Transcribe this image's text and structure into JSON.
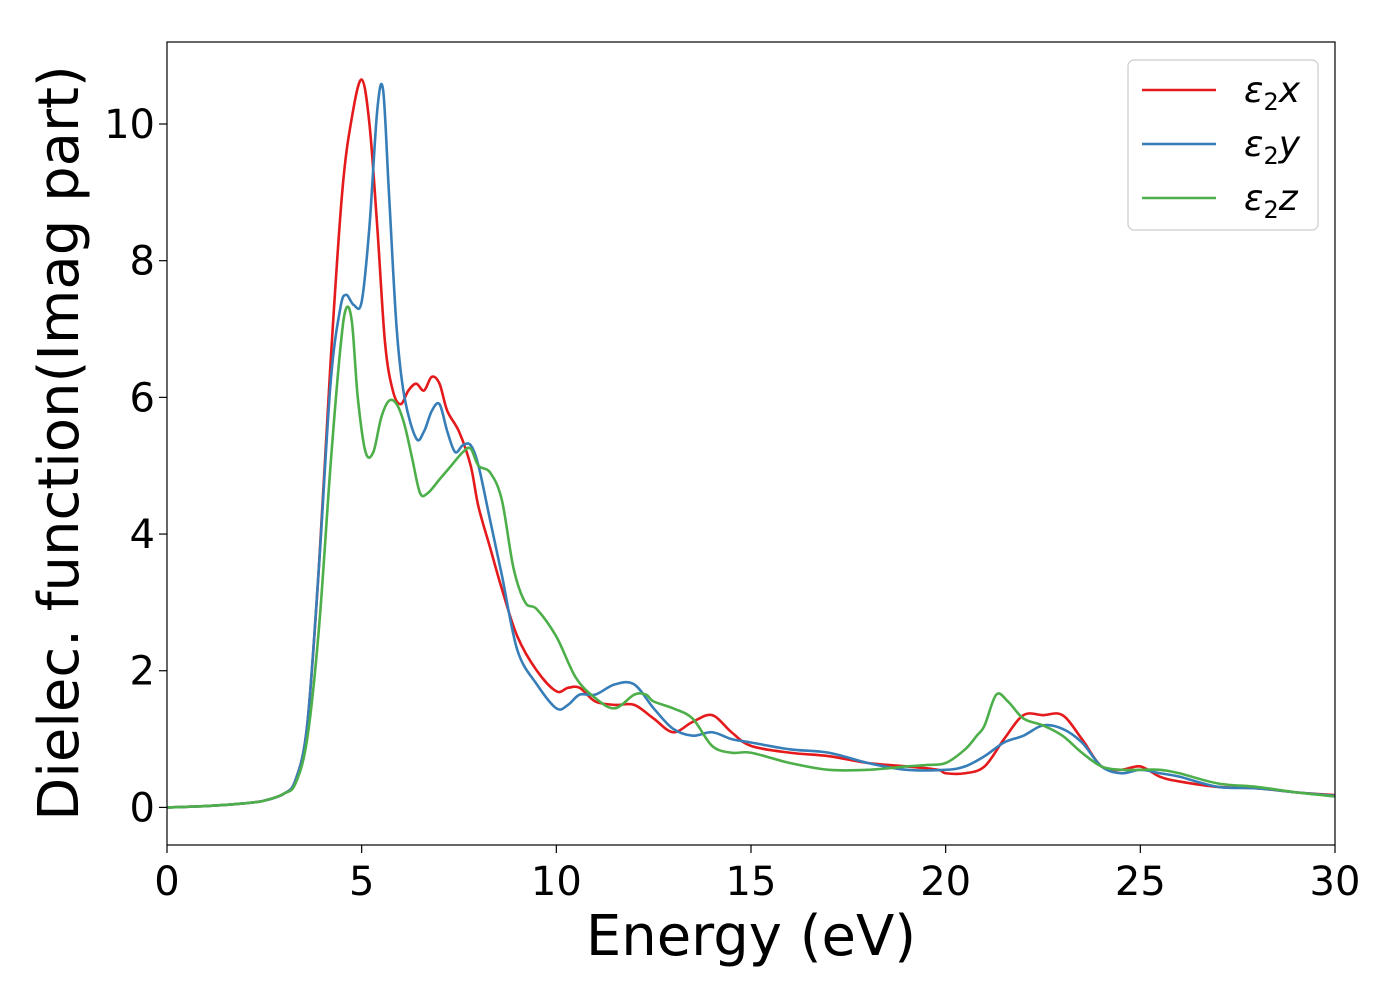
{
  "chart_data": {
    "type": "line",
    "xlabel": "Energy (eV)",
    "ylabel": "Dielec. function(Imag part)",
    "xlim": [
      0,
      30
    ],
    "ylim": [
      -0.55,
      11.2
    ],
    "xticks": [
      0,
      5,
      10,
      15,
      20,
      25,
      30
    ],
    "yticks": [
      0,
      2,
      4,
      6,
      8,
      10
    ],
    "grid": false,
    "legend_position": "top-right",
    "series": [
      {
        "name": "ε2x",
        "legend_base": "ε",
        "legend_sub": "2",
        "legend_suffix": "x",
        "color": "#e41a1c",
        "x": [
          0,
          1,
          2,
          2.5,
          3,
          3.3,
          3.6,
          3.9,
          4.2,
          4.5,
          4.75,
          5.0,
          5.2,
          5.4,
          5.6,
          5.8,
          6.0,
          6.2,
          6.4,
          6.6,
          6.8,
          7.0,
          7.2,
          7.5,
          7.8,
          8.0,
          8.3,
          8.6,
          9.0,
          9.5,
          10.0,
          10.3,
          10.6,
          11.0,
          11.5,
          12.0,
          12.5,
          13.0,
          13.5,
          14.0,
          14.5,
          15.0,
          16.0,
          17.0,
          18.0,
          19.0,
          19.8,
          20.0,
          20.5,
          21.0,
          21.5,
          22.0,
          22.5,
          23.0,
          23.5,
          24.0,
          24.5,
          25.0,
          25.5,
          26.0,
          27.0,
          28.0,
          29.0,
          30.0
        ],
        "values": [
          0,
          0.02,
          0.06,
          0.1,
          0.2,
          0.4,
          1.2,
          3.5,
          6.5,
          9.0,
          10.1,
          10.65,
          10.0,
          8.5,
          6.8,
          6.1,
          5.9,
          6.1,
          6.2,
          6.1,
          6.3,
          6.2,
          5.8,
          5.5,
          5.0,
          4.4,
          3.8,
          3.2,
          2.5,
          2.0,
          1.7,
          1.75,
          1.75,
          1.55,
          1.5,
          1.5,
          1.3,
          1.1,
          1.25,
          1.35,
          1.1,
          0.9,
          0.8,
          0.75,
          0.65,
          0.6,
          0.55,
          0.5,
          0.5,
          0.6,
          1.0,
          1.35,
          1.35,
          1.35,
          1.0,
          0.6,
          0.55,
          0.6,
          0.45,
          0.38,
          0.3,
          0.28,
          0.22,
          0.18
        ]
      },
      {
        "name": "ε2y",
        "legend_base": "ε",
        "legend_sub": "2",
        "legend_suffix": "y",
        "color": "#377eb8",
        "x": [
          0,
          1,
          2,
          2.5,
          3,
          3.3,
          3.6,
          3.9,
          4.2,
          4.45,
          4.6,
          4.8,
          5.0,
          5.2,
          5.4,
          5.55,
          5.7,
          5.9,
          6.1,
          6.4,
          6.6,
          6.8,
          7.0,
          7.2,
          7.4,
          7.6,
          7.8,
          8.0,
          8.3,
          8.6,
          9.0,
          9.5,
          10.0,
          10.3,
          10.6,
          11.0,
          11.5,
          12.0,
          12.5,
          13.0,
          13.5,
          14.0,
          14.5,
          15.0,
          16.0,
          17.0,
          18.0,
          19.0,
          20.0,
          20.5,
          21.0,
          21.5,
          22.0,
          22.5,
          23.0,
          23.5,
          24.0,
          24.5,
          25.0,
          25.5,
          26.0,
          27.0,
          28.0,
          29.0,
          30.0
        ],
        "values": [
          0,
          0.02,
          0.06,
          0.1,
          0.2,
          0.4,
          1.2,
          3.5,
          6.2,
          7.3,
          7.5,
          7.35,
          7.4,
          8.5,
          10.2,
          10.5,
          9.0,
          7.0,
          6.0,
          5.4,
          5.5,
          5.8,
          5.9,
          5.5,
          5.2,
          5.3,
          5.3,
          5.0,
          4.2,
          3.4,
          2.3,
          1.8,
          1.45,
          1.5,
          1.65,
          1.65,
          1.8,
          1.8,
          1.45,
          1.15,
          1.05,
          1.1,
          1.0,
          0.95,
          0.85,
          0.8,
          0.65,
          0.55,
          0.55,
          0.6,
          0.75,
          0.95,
          1.05,
          1.2,
          1.15,
          0.95,
          0.6,
          0.5,
          0.55,
          0.5,
          0.45,
          0.3,
          0.28,
          0.22,
          0.17
        ]
      },
      {
        "name": "ε2z",
        "legend_base": "ε",
        "legend_sub": "2",
        "legend_suffix": "z",
        "color": "#4daf4a",
        "x": [
          0,
          1,
          2,
          2.5,
          3,
          3.3,
          3.6,
          3.9,
          4.2,
          4.45,
          4.6,
          4.75,
          4.9,
          5.1,
          5.3,
          5.5,
          5.7,
          5.9,
          6.1,
          6.3,
          6.5,
          6.7,
          7.0,
          7.3,
          7.6,
          7.8,
          8.0,
          8.3,
          8.6,
          8.9,
          9.2,
          9.5,
          10.0,
          10.5,
          11.0,
          11.5,
          12.0,
          12.3,
          12.5,
          13.0,
          13.5,
          14.0,
          14.5,
          15.0,
          16.0,
          17.0,
          18.0,
          19.0,
          19.5,
          20.0,
          20.5,
          20.8,
          21.0,
          21.3,
          21.6,
          22.0,
          22.5,
          23.0,
          23.5,
          24.0,
          24.5,
          25.0,
          25.5,
          26.0,
          27.0,
          28.0,
          29.0,
          30.0
        ],
        "values": [
          0,
          0.02,
          0.06,
          0.1,
          0.2,
          0.35,
          1.0,
          2.6,
          5.0,
          6.7,
          7.3,
          7.1,
          6.0,
          5.2,
          5.2,
          5.7,
          5.95,
          5.9,
          5.6,
          5.1,
          4.6,
          4.6,
          4.8,
          5.0,
          5.2,
          5.25,
          5.0,
          4.9,
          4.5,
          3.5,
          3.0,
          2.9,
          2.5,
          1.9,
          1.6,
          1.45,
          1.65,
          1.65,
          1.55,
          1.45,
          1.3,
          0.9,
          0.8,
          0.8,
          0.65,
          0.55,
          0.55,
          0.6,
          0.62,
          0.65,
          0.85,
          1.05,
          1.2,
          1.65,
          1.55,
          1.3,
          1.2,
          1.05,
          0.8,
          0.6,
          0.55,
          0.55,
          0.55,
          0.5,
          0.35,
          0.3,
          0.22,
          0.16
        ]
      }
    ]
  }
}
